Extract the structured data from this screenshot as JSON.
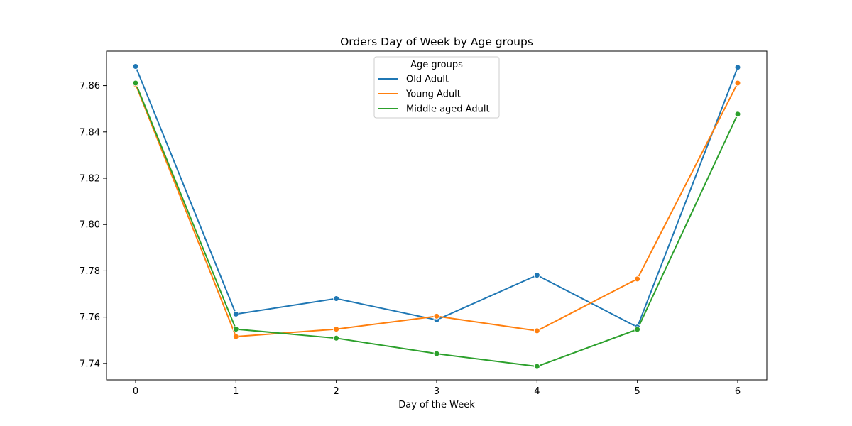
{
  "chart_data": {
    "type": "line",
    "title": "Orders Day of Week by Age groups",
    "xlabel": "Day of the Week",
    "ylabel": "",
    "x": [
      0,
      1,
      2,
      3,
      4,
      5,
      6
    ],
    "x_ticks": [
      "0",
      "1",
      "2",
      "3",
      "4",
      "5",
      "6"
    ],
    "y_ticks": [
      "7.74",
      "7.76",
      "7.78",
      "7.80",
      "7.82",
      "7.84",
      "7.86"
    ],
    "xlim": [
      -0.29,
      6.29
    ],
    "ylim": [
      7.7329,
      7.8749
    ],
    "grid": false,
    "legend": {
      "title": "Age groups",
      "placement": "upper center"
    },
    "series": [
      {
        "name": "Old Adult",
        "color": "#1f77b4",
        "values": [
          7.8683,
          7.7613,
          7.768,
          7.7588,
          7.7781,
          7.7557,
          7.8679
        ]
      },
      {
        "name": "Young Adult",
        "color": "#ff7f0e",
        "values": [
          7.8606,
          7.7516,
          7.7548,
          7.7604,
          7.7541,
          7.7765,
          7.8611
        ]
      },
      {
        "name": "Middle aged Adult",
        "color": "#2ca02c",
        "values": [
          7.8611,
          7.7548,
          7.7509,
          7.7442,
          7.7387,
          7.7547,
          7.8477
        ]
      }
    ]
  }
}
